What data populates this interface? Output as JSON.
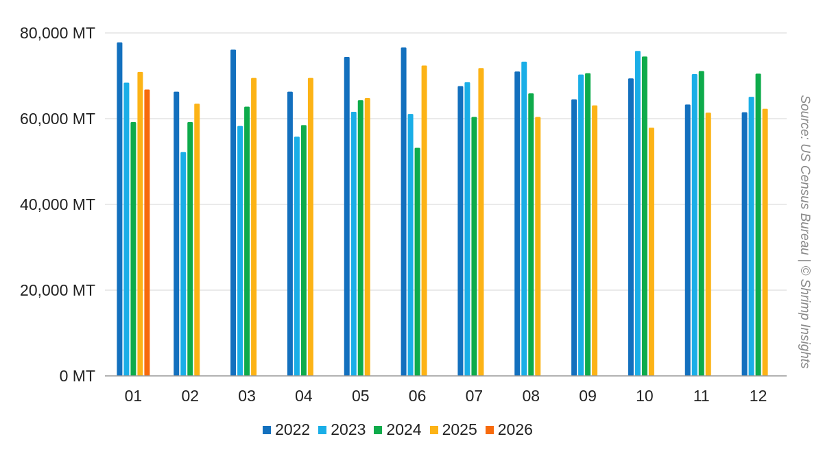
{
  "chart_data": {
    "type": "bar",
    "categories": [
      "01",
      "02",
      "03",
      "04",
      "05",
      "06",
      "07",
      "08",
      "09",
      "10",
      "11",
      "12"
    ],
    "series": [
      {
        "name": "2022",
        "color": "#1370BE",
        "values": [
          77800,
          66300,
          76100,
          66300,
          74400,
          76600,
          67600,
          71000,
          64500,
          69400,
          63300,
          61500
        ]
      },
      {
        "name": "2023",
        "color": "#1AAEE7",
        "values": [
          68400,
          52200,
          58300,
          55800,
          61600,
          61100,
          68500,
          73300,
          70300,
          75800,
          70400,
          65100
        ]
      },
      {
        "name": "2024",
        "color": "#0EAB4B",
        "values": [
          59200,
          59200,
          62800,
          58500,
          64300,
          53200,
          60400,
          65900,
          70600,
          74500,
          71100,
          70500
        ]
      },
      {
        "name": "2025",
        "color": "#FCB316",
        "values": [
          70900,
          63500,
          69500,
          69500,
          64800,
          72400,
          71800,
          60400,
          63100,
          57900,
          61400,
          62300
        ]
      },
      {
        "name": "2026",
        "color": "#F76A0C",
        "values": [
          66800,
          null,
          null,
          null,
          null,
          null,
          null,
          null,
          null,
          null,
          null,
          null
        ]
      }
    ],
    "ylim": [
      0,
      80000
    ],
    "yticks": [
      0,
      20000,
      40000,
      60000,
      80000
    ],
    "ytick_labels": [
      "0 MT",
      "20,000 MT",
      "40,000 MT",
      "60,000 MT",
      "80,000 MT"
    ],
    "grid": "horizontal",
    "legend_position": "bottom"
  },
  "source_note": "Source: US Census Bureau | © Shrimp Insights"
}
